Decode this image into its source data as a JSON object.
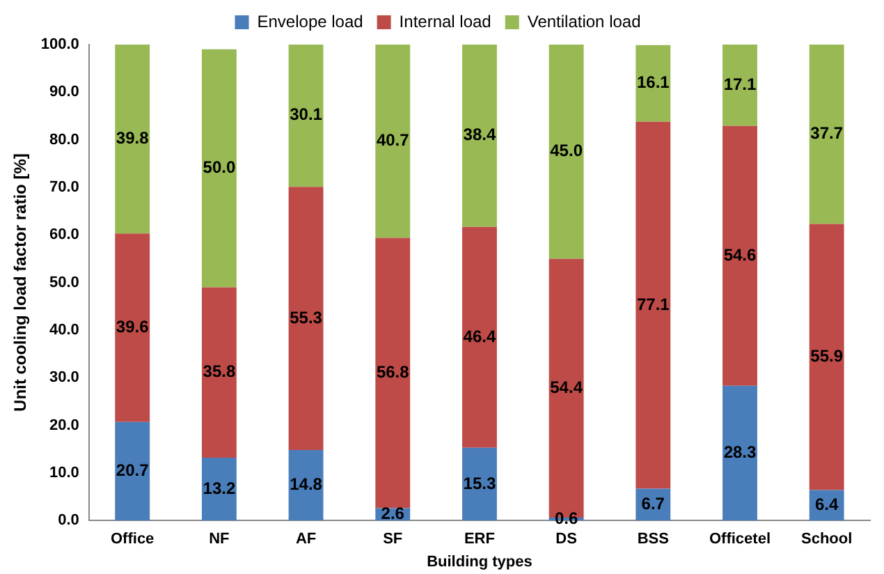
{
  "chart_data": {
    "type": "bar",
    "stacked": true,
    "xlabel": "Building types",
    "ylabel": "Unit cooling load factor ratio [%]",
    "categories": [
      "Office",
      "NF",
      "AF",
      "SF",
      "ERF",
      "DS",
      "BSS",
      "Officetel",
      "School"
    ],
    "series": [
      {
        "name": "Envelope load",
        "color": "#4a7ebb",
        "values": [
          20.7,
          13.2,
          14.8,
          2.6,
          15.3,
          0.6,
          6.7,
          28.3,
          6.4
        ],
        "value_labels": [
          "20.7",
          "13.2",
          "14.8",
          "2.6",
          "15.3",
          "0.6",
          "6.7",
          "28.3",
          "6.4"
        ]
      },
      {
        "name": "Internal load",
        "color": "#be4b48",
        "values": [
          39.6,
          35.8,
          55.3,
          56.8,
          46.4,
          54.4,
          77.1,
          54.6,
          55.9
        ],
        "value_labels": [
          "39.6",
          "35.8",
          "55.3",
          "56.8",
          "46.4",
          "54.4",
          "77.1",
          "54.6",
          "55.9"
        ]
      },
      {
        "name": "Ventilation load",
        "color": "#98b954",
        "values": [
          39.8,
          50.0,
          30.1,
          40.7,
          38.4,
          45.0,
          16.1,
          17.1,
          37.7
        ],
        "value_labels": [
          "39.8",
          "50.0",
          "30.1",
          "40.7",
          "38.4",
          "45.0",
          "16.1",
          "17.1",
          "37.7"
        ]
      }
    ],
    "ylim": [
      0,
      100
    ],
    "yticks": [
      {
        "value": 0,
        "label": "0.0"
      },
      {
        "value": 10,
        "label": "10.0"
      },
      {
        "value": 20,
        "label": "20.0"
      },
      {
        "value": 30,
        "label": "30.0"
      },
      {
        "value": 40,
        "label": "40.0"
      },
      {
        "value": 50,
        "label": "50.0"
      },
      {
        "value": 60,
        "label": "60.0"
      },
      {
        "value": 70,
        "label": "70.0"
      },
      {
        "value": 80,
        "label": "80.0"
      },
      {
        "value": 90,
        "label": "90.0"
      },
      {
        "value": 100,
        "label": "100.0"
      }
    ],
    "grid": false,
    "legend": "top"
  }
}
